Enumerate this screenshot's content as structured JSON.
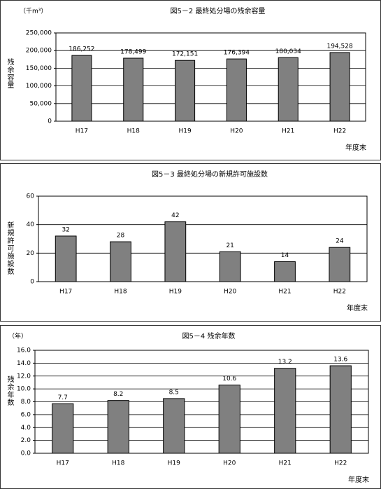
{
  "chart_data": [
    {
      "type": "bar",
      "title": "図5－2 最終処分場の残余容量",
      "unit": "（千m³）",
      "y_label": "残余容量",
      "x_label": "年度末",
      "categories": [
        "H17",
        "H18",
        "H19",
        "H20",
        "H21",
        "H22"
      ],
      "values": [
        186252,
        178499,
        172151,
        176394,
        180034,
        194528
      ],
      "value_labels": [
        "186,252",
        "178,499",
        "172,151",
        "176,394",
        "180,034",
        "194,528"
      ],
      "color": "#808080",
      "ylim": [
        0,
        250000
      ],
      "yticks": [
        0,
        {
          "value": 50000,
          "label": "50,000"
        },
        {
          "value": 100000,
          "label": "100,000"
        },
        {
          "value": 150000,
          "label": "150,000"
        },
        {
          "value": 200000,
          "label": "200,000"
        },
        {
          "value": 250000,
          "label": "250,000"
        }
      ],
      "grid": true
    },
    {
      "type": "bar",
      "title": "図5－3 最終処分場の新規許可施設数",
      "y_label": "新規許可施設数",
      "x_label": "年度末",
      "categories": [
        "H17",
        "H18",
        "H19",
        "H20",
        "H21",
        "H22"
      ],
      "values": [
        32,
        28,
        42,
        21,
        14,
        24
      ],
      "color": "#808080",
      "ylim": [
        0,
        60
      ],
      "yticks": [
        0,
        20,
        40,
        60
      ],
      "grid": true
    },
    {
      "type": "bar",
      "title": "図5－4 残余年数",
      "unit": "（年）",
      "y_label": "残余年数",
      "x_label": "年度末",
      "categories": [
        "H17",
        "H18",
        "H19",
        "H20",
        "H21",
        "H22"
      ],
      "values": [
        7.7,
        8.2,
        8.5,
        10.6,
        13.2,
        13.6
      ],
      "color": "#808080",
      "ylim": [
        0,
        16
      ],
      "yticks": [
        {
          "value": 0,
          "label": "0.0"
        },
        {
          "value": 2,
          "label": "2.0"
        },
        {
          "value": 4,
          "label": "4.0"
        },
        {
          "value": 6,
          "label": "6.0"
        },
        {
          "value": 8,
          "label": "8.0"
        },
        {
          "value": 10,
          "label": "10.0"
        },
        {
          "value": 12,
          "label": "12.0"
        },
        {
          "value": 14,
          "label": "14.0"
        },
        {
          "value": 16,
          "label": "16.0"
        }
      ],
      "grid": true
    }
  ]
}
